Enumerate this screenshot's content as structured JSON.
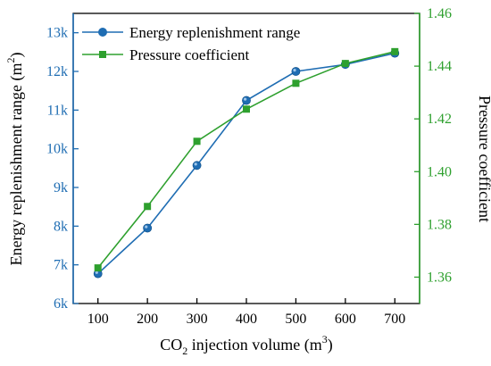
{
  "chart_data": {
    "type": "line",
    "x": [
      100,
      200,
      300,
      400,
      500,
      600,
      700
    ],
    "xlim": [
      50,
      750
    ],
    "x_ticks": [
      100,
      200,
      300,
      400,
      500,
      600,
      700
    ],
    "xlabel": {
      "prefix": "CO",
      "sub": "2",
      "middle": " injection volume (m",
      "sup": "3",
      "suffix": ")"
    },
    "y_left": {
      "label": {
        "main": "Energy replenishment range (m",
        "sup": "2",
        "suffix": ")"
      },
      "ylim": [
        6000,
        13500
      ],
      "ticks": [
        6000,
        7000,
        8000,
        9000,
        10000,
        11000,
        12000,
        13000
      ],
      "tick_labels": [
        "6k",
        "7k",
        "8k",
        "9k",
        "10k",
        "11k",
        "12k",
        "13k"
      ],
      "color": "#1f6db3"
    },
    "y_right": {
      "label": "Pressure coefficient",
      "ylim": [
        1.35,
        1.46
      ],
      "ticks": [
        1.36,
        1.38,
        1.4,
        1.42,
        1.44,
        1.46
      ],
      "tick_labels": [
        "1.36",
        "1.38",
        "1.40",
        "1.42",
        "1.44",
        "1.46"
      ],
      "color": "#2ea02e"
    },
    "series": [
      {
        "name": "Energy replenishment range",
        "axis": "left",
        "marker": "circle",
        "color": "#1f6db3",
        "values": [
          6770,
          7950,
          9570,
          11250,
          12000,
          12180,
          12470
        ]
      },
      {
        "name": "Pressure coefficient",
        "axis": "right",
        "marker": "square",
        "color": "#2ea02e",
        "values": [
          1.3635,
          1.3868,
          1.4115,
          1.4237,
          1.4335,
          1.441,
          1.4455
        ]
      }
    ],
    "legend": "top-left",
    "grid": false
  }
}
